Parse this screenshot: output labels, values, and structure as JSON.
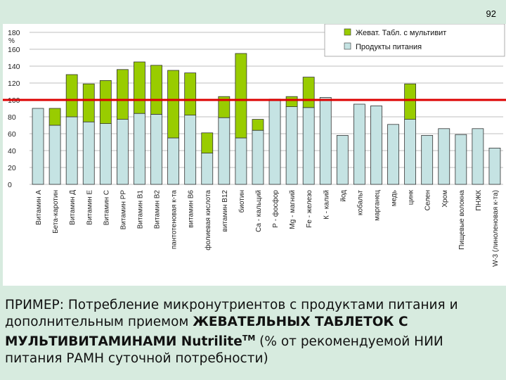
{
  "slide": {
    "page_number": "92",
    "caption": {
      "part1": "ПРИМЕР: Потребление микронутриентов с продуктами питания и дополнительным приемом ",
      "bold": "ЖЕВАТЕЛЬНЫХ ТАБЛЕТОК С МУЛЬТИВИТАМИНАМИ Nutrilite",
      "superscript": "TM",
      "part2": " (% от рекомендуемой НИИ питания РАМН суточной потребности)"
    }
  },
  "colors": {
    "food": "#c5e3e3",
    "supplement": "#99cc00",
    "bar_stroke": "#333333",
    "reference_line": "#dd0000",
    "grid": "#bfbfbf"
  },
  "chart_data": {
    "type": "bar",
    "stacked": true,
    "ylabel": "%",
    "ylim": [
      0,
      180
    ],
    "yticks": [
      0,
      20,
      40,
      60,
      80,
      100,
      120,
      140,
      160,
      180
    ],
    "grid": true,
    "legend_position": "top-right",
    "reference_line": 100,
    "categories": [
      "Витамин А",
      "Бета-каротин",
      "Витамин Д",
      "Витамин Е",
      "Витамин С",
      "Витамин РР",
      "Витамин В1",
      "Витамин В2",
      "пантотеновая к-та",
      "витамин В6",
      "фолиевая кислота",
      "витамин В12",
      "биотин",
      "Са - кальций",
      "Р - фосфор",
      "Mg - магний",
      "Fe - железо",
      "К - калий",
      "йод",
      "кобальт",
      "марганец",
      "медь",
      "цинк",
      "Селен",
      "Хром",
      "Пищевые волокна",
      "ПНЖК",
      "W-3 (линоленовая к-та)"
    ],
    "series": [
      {
        "name": "Продукты питания",
        "values": [
          90,
          70,
          80,
          74,
          72,
          77,
          84,
          83,
          55,
          82,
          37,
          79,
          55,
          64,
          101,
          92,
          91,
          103,
          58,
          95,
          93,
          71,
          77,
          58,
          66,
          59,
          66,
          43
        ]
      },
      {
        "name": "Жеват. Табл. с мультивит",
        "values": [
          0,
          20,
          50,
          45,
          51,
          59,
          61,
          58,
          80,
          50,
          24,
          25,
          100,
          13,
          0,
          12,
          36,
          0,
          0,
          0,
          0,
          0,
          42,
          0,
          0,
          0,
          0,
          0
        ]
      }
    ]
  }
}
